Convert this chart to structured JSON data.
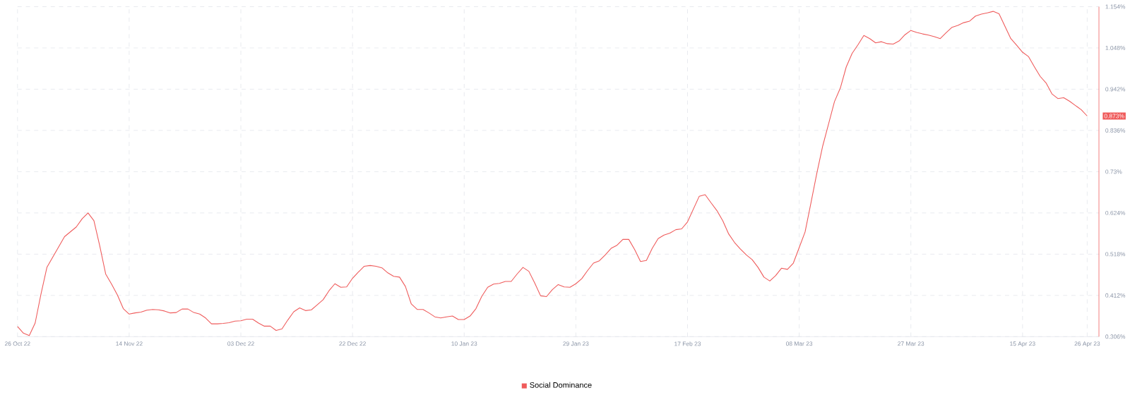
{
  "chart_data": {
    "type": "line",
    "x": [
      "2022-10-26",
      "2022-10-27",
      "2022-10-28",
      "2022-10-29",
      "2022-10-30",
      "2022-10-31",
      "2022-11-03",
      "2022-11-05",
      "2022-11-06",
      "2022-11-07",
      "2022-11-08",
      "2022-11-09",
      "2022-11-10",
      "2022-11-11",
      "2022-11-12",
      "2022-11-13",
      "2022-11-14",
      "2022-11-15",
      "2022-11-16",
      "2022-11-17",
      "2022-11-18",
      "2022-11-19",
      "2022-11-20",
      "2022-11-21",
      "2022-11-22",
      "2022-11-23",
      "2022-11-24",
      "2022-11-25",
      "2022-11-26",
      "2022-11-27",
      "2022-11-28",
      "2022-11-29",
      "2022-11-30",
      "2022-12-01",
      "2022-12-02",
      "2022-12-03",
      "2022-12-04",
      "2022-12-05",
      "2022-12-06",
      "2022-12-07",
      "2022-12-08",
      "2022-12-09",
      "2022-12-10",
      "2022-12-11",
      "2022-12-12",
      "2022-12-13",
      "2022-12-14",
      "2022-12-15",
      "2022-12-16",
      "2022-12-17",
      "2022-12-18",
      "2022-12-19",
      "2022-12-20",
      "2022-12-21",
      "2022-12-22",
      "2022-12-23",
      "2022-12-24",
      "2022-12-25",
      "2022-12-26",
      "2022-12-27",
      "2022-12-28",
      "2022-12-29",
      "2022-12-30",
      "2022-12-31",
      "2023-01-01",
      "2023-01-02",
      "2023-01-03",
      "2023-01-04",
      "2023-01-05",
      "2023-01-06",
      "2023-01-07",
      "2023-01-08",
      "2023-01-09",
      "2023-01-10",
      "2023-01-11",
      "2023-01-12",
      "2023-01-13",
      "2023-01-14",
      "2023-01-15",
      "2023-01-16",
      "2023-01-17",
      "2023-01-18",
      "2023-01-19",
      "2023-01-20",
      "2023-01-21",
      "2023-01-22",
      "2023-01-23",
      "2023-01-24",
      "2023-01-25",
      "2023-01-26",
      "2023-01-27",
      "2023-01-28",
      "2023-01-29",
      "2023-01-30",
      "2023-01-31",
      "2023-02-01",
      "2023-02-02",
      "2023-02-03",
      "2023-02-04",
      "2023-02-05",
      "2023-02-06",
      "2023-02-07",
      "2023-02-08",
      "2023-02-09",
      "2023-02-10",
      "2023-02-11",
      "2023-02-12",
      "2023-02-13",
      "2023-02-14",
      "2023-02-15",
      "2023-02-16",
      "2023-02-17",
      "2023-02-18",
      "2023-02-19",
      "2023-02-20",
      "2023-02-21",
      "2023-02-22",
      "2023-02-23",
      "2023-02-24",
      "2023-02-25",
      "2023-02-26",
      "2023-02-27",
      "2023-02-28",
      "2023-03-01",
      "2023-03-02",
      "2023-03-03",
      "2023-03-04",
      "2023-03-05",
      "2023-03-06",
      "2023-03-07",
      "2023-03-08",
      "2023-03-09",
      "2023-03-10",
      "2023-03-11",
      "2023-03-12",
      "2023-03-13",
      "2023-03-14",
      "2023-03-15",
      "2023-03-16",
      "2023-03-17",
      "2023-03-18",
      "2023-03-19",
      "2023-03-20",
      "2023-03-21",
      "2023-03-22",
      "2023-03-23",
      "2023-03-24",
      "2023-03-25",
      "2023-03-26",
      "2023-03-27",
      "2023-03-28",
      "2023-03-29",
      "2023-03-30",
      "2023-03-31",
      "2023-04-01",
      "2023-04-02",
      "2023-04-03",
      "2023-04-04",
      "2023-04-05",
      "2023-04-06",
      "2023-04-07",
      "2023-04-08",
      "2023-04-09",
      "2023-04-10",
      "2023-04-11",
      "2023-04-12",
      "2023-04-13",
      "2023-04-14",
      "2023-04-15",
      "2023-04-16",
      "2023-04-17",
      "2023-04-18",
      "2023-04-19",
      "2023-04-20",
      "2023-04-21",
      "2023-04-22",
      "2023-04-23",
      "2023-04-24",
      "2023-04-25",
      "2023-04-26"
    ],
    "series": [
      {
        "name": "Social Dominance",
        "color": "#ef5b5b",
        "values": [
          0.332,
          0.315,
          0.309,
          0.341,
          0.416,
          0.484,
          0.563,
          0.588,
          0.609,
          0.624,
          0.604,
          0.539,
          0.467,
          0.441,
          0.413,
          0.378,
          0.364,
          0.367,
          0.369,
          0.374,
          0.376,
          0.375,
          0.372,
          0.367,
          0.368,
          0.377,
          0.377,
          0.368,
          0.364,
          0.354,
          0.339,
          0.339,
          0.34,
          0.342,
          0.346,
          0.347,
          0.351,
          0.351,
          0.341,
          0.333,
          0.333,
          0.322,
          0.326,
          0.349,
          0.37,
          0.38,
          0.373,
          0.375,
          0.388,
          0.401,
          0.424,
          0.442,
          0.433,
          0.434,
          0.456,
          0.472,
          0.487,
          0.489,
          0.487,
          0.483,
          0.47,
          0.461,
          0.459,
          0.435,
          0.39,
          0.376,
          0.376,
          0.367,
          0.357,
          0.354,
          0.357,
          0.359,
          0.35,
          0.35,
          0.359,
          0.378,
          0.41,
          0.433,
          0.441,
          0.443,
          0.448,
          0.448,
          0.467,
          0.484,
          0.474,
          0.444,
          0.411,
          0.409,
          0.427,
          0.44,
          0.434,
          0.433,
          0.442,
          0.455,
          0.476,
          0.495,
          0.501,
          0.516,
          0.533,
          0.541,
          0.556,
          0.556,
          0.53,
          0.499,
          0.502,
          0.533,
          0.558,
          0.567,
          0.572,
          0.581,
          0.583,
          0.601,
          0.634,
          0.667,
          0.671,
          0.65,
          0.63,
          0.604,
          0.57,
          0.548,
          0.531,
          0.516,
          0.504,
          0.484,
          0.459,
          0.449,
          0.463,
          0.482,
          0.479,
          0.495,
          0.535,
          0.575,
          0.65,
          0.726,
          0.796,
          0.853,
          0.91,
          0.945,
          0.999,
          1.034,
          1.056,
          1.08,
          1.072,
          1.061,
          1.064,
          1.059,
          1.058,
          1.066,
          1.082,
          1.093,
          1.088,
          1.084,
          1.081,
          1.077,
          1.072,
          1.087,
          1.101,
          1.106,
          1.113,
          1.117,
          1.13,
          1.135,
          1.138,
          1.142,
          1.136,
          1.104,
          1.072,
          1.055,
          1.037,
          1.026,
          1.0,
          0.975,
          0.958,
          0.93,
          0.918,
          0.92,
          0.911,
          0.9,
          0.889,
          0.873
        ]
      }
    ],
    "xlim": [
      "2022-10-26",
      "2023-04-28"
    ],
    "xticks": [
      {
        "value": "2022-10-26",
        "label": "26 Oct 22"
      },
      {
        "value": "2022-11-14",
        "label": "14 Nov 22"
      },
      {
        "value": "2022-12-03",
        "label": "03 Dec 22"
      },
      {
        "value": "2022-12-22",
        "label": "22 Dec 22"
      },
      {
        "value": "2023-01-10",
        "label": "10 Jan 23"
      },
      {
        "value": "2023-01-29",
        "label": "29 Jan 23"
      },
      {
        "value": "2023-02-17",
        "label": "17 Feb 23"
      },
      {
        "value": "2023-03-08",
        "label": "08 Mar 23"
      },
      {
        "value": "2023-03-27",
        "label": "27 Mar 23"
      },
      {
        "value": "2023-04-15",
        "label": "15 Apr 23"
      },
      {
        "value": "2023-04-26",
        "label": "26 Apr 23"
      }
    ],
    "ylim": [
      0.306,
      1.154
    ],
    "yticks": [
      {
        "value": 0.306,
        "label": "0.306%"
      },
      {
        "value": 0.412,
        "label": "0.412%"
      },
      {
        "value": 0.518,
        "label": "0.518%"
      },
      {
        "value": 0.624,
        "label": "0.624%"
      },
      {
        "value": 0.73,
        "label": "0.73%"
      },
      {
        "value": 0.836,
        "label": "0.836%"
      },
      {
        "value": 0.942,
        "label": "0.942%"
      },
      {
        "value": 1.048,
        "label": "1.048%"
      },
      {
        "value": 1.154,
        "label": "1.154%"
      }
    ],
    "annotations": [
      {
        "text": "0.873%",
        "x": "2023-04-26",
        "y": 0.873
      }
    ],
    "grid": true,
    "legend": "bottom",
    "marker": "none",
    "line_style": "solid"
  }
}
